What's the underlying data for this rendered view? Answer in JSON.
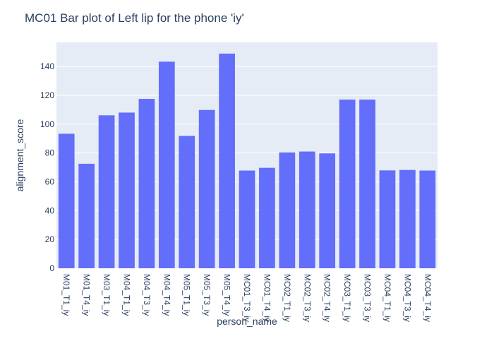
{
  "chart_data": {
    "type": "bar",
    "title": "MC01 Bar plot of Left lip for the phone 'iy'",
    "xlabel": "person_name",
    "ylabel": "alignment_score",
    "categories": [
      "M01_T1_iy",
      "M01_T4_iy",
      "M03_T1_iy",
      "M04_T1_iy",
      "M04_T3_iy",
      "M04_T4_iy",
      "M05_T1_iy",
      "M05_T3_iy",
      "M05_T4_iy",
      "MC01_T3_iy",
      "MC01_T4_iy",
      "MC02_T1_iy",
      "MC02_T3_iy",
      "MC02_T4_iy",
      "MC03_T1_iy",
      "MC03_T3_iy",
      "MC04_T1_iy",
      "MC04_T3_iy",
      "MC04_T4_iy"
    ],
    "values": [
      93.3,
      72.5,
      106.1,
      108.0,
      117.5,
      143.3,
      91.8,
      109.8,
      148.9,
      67.8,
      69.7,
      80.3,
      81.0,
      79.7,
      117.0,
      117.0,
      67.9,
      68.2,
      67.8
    ],
    "yticks": [
      0,
      20,
      40,
      60,
      80,
      100,
      120,
      140
    ],
    "ylim": [
      0,
      156.7
    ],
    "grid": true,
    "colors": {
      "bar": "#636efa",
      "plot_bg": "#e5ecf6",
      "grid": "#ffffff",
      "text": "#2a3f5f"
    }
  }
}
